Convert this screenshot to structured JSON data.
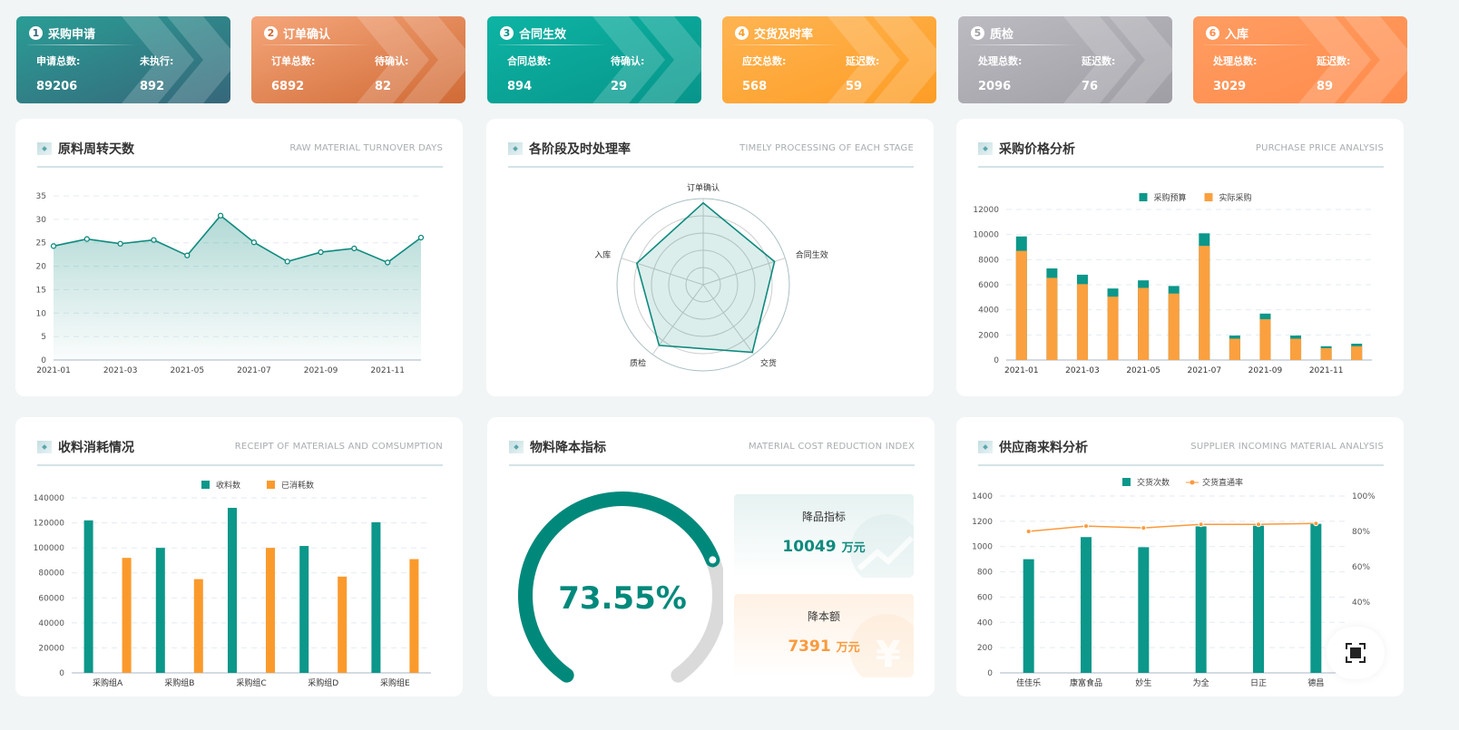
{
  "kpis": [
    {
      "num": "1",
      "title": "采购申请",
      "label1": "申请总数:",
      "value1": "89206",
      "label2": "未执行:",
      "value2": "892",
      "colors": [
        "#2a9d95",
        "#36677a"
      ]
    },
    {
      "num": "2",
      "title": "订单确认",
      "label1": "订单总数:",
      "value1": "6892",
      "label2": "待确认:",
      "value2": "82",
      "colors": [
        "#f5a67a",
        "#d06a35"
      ]
    },
    {
      "num": "3",
      "title": "合同生效",
      "label1": "合同总数:",
      "value1": "894",
      "label2": "待确认:",
      "value2": "29",
      "colors": [
        "#0db4a4",
        "#07958a"
      ]
    },
    {
      "num": "4",
      "title": "交货及时率",
      "label1": "应交总数:",
      "value1": "568",
      "label2": "延迟数:",
      "value2": "59",
      "colors": [
        "#ffb452",
        "#fd9d25"
      ]
    },
    {
      "num": "5",
      "title": "质检",
      "label1": "处理总数:",
      "value1": "2096",
      "label2": "延迟数:",
      "value2": "76",
      "colors": [
        "#bcbbc1",
        "#9f9ea5"
      ]
    },
    {
      "num": "6",
      "title": "入库",
      "label1": "处理总数:",
      "value1": "3029",
      "label2": "延迟数:",
      "value2": "89",
      "colors": [
        "#ff9d62",
        "#ff8b4b"
      ]
    }
  ],
  "panels": {
    "turnover": {
      "title": "原料周转天数",
      "en": "RAW MATERIAL TURNOVER DAYS"
    },
    "timely": {
      "title": "各阶段及时处理率",
      "en": "TIMELY PROCESSING OF EACH STAGE"
    },
    "price": {
      "title": "采购价格分析",
      "en": "PURCHASE PRICE ANALYSIS"
    },
    "receipt": {
      "title": "收料消耗情况",
      "en": "RECEIPT OF MATERIALS AND COMSUMPTION"
    },
    "cost": {
      "title": "物料降本指标",
      "en": "MATERIAL COST REDUCTION INDEX"
    },
    "supplier": {
      "title": "供应商来料分析",
      "en": "SUPPLIER INCOMING MATERIAL ANALYSIS"
    }
  },
  "cost": {
    "gauge_percent": 73.55,
    "gauge_label": "73.55%",
    "box1": {
      "label": "降品指标",
      "value": "10049",
      "unit": "万元"
    },
    "box2": {
      "label": "降本额",
      "value": "7391",
      "unit": "万元"
    }
  },
  "chart_data": [
    {
      "id": "turnover",
      "type": "area",
      "x": [
        "2021-01",
        "2021-02",
        "2021-03",
        "2021-04",
        "2021-05",
        "2021-06",
        "2021-07",
        "2021-08",
        "2021-09",
        "2021-10",
        "2021-11",
        "2021-12"
      ],
      "xticks": [
        "2021-01",
        "2021-03",
        "2021-05",
        "2021-07",
        "2021-09",
        "2021-11"
      ],
      "values": [
        24.3,
        25.8,
        24.8,
        25.6,
        22.3,
        30.8,
        25.1,
        21,
        23,
        23.8,
        20.8,
        26.1
      ],
      "ylim": [
        0,
        35
      ],
      "yticks": [
        0,
        5,
        10,
        15,
        20,
        25,
        30,
        35
      ],
      "color": "#0f8a7e",
      "grid": true
    },
    {
      "id": "timely",
      "type": "radar",
      "indicators": [
        "订单确认",
        "合同生效",
        "交货",
        "质检",
        "入库"
      ],
      "values": [
        95,
        87,
        97,
        87,
        81
      ],
      "max": 100,
      "color": "#0f8a7e"
    },
    {
      "id": "price",
      "type": "bar",
      "x": [
        "2021-01",
        "2021-02",
        "2021-03",
        "2021-04",
        "2021-05",
        "2021-06",
        "2021-07",
        "2021-08",
        "2021-09",
        "2021-10",
        "2021-11",
        "2021-12"
      ],
      "xticks": [
        "2021-01",
        "2021-03",
        "2021-05",
        "2021-07",
        "2021-09",
        "2021-11"
      ],
      "series": [
        {
          "name": "采购预算",
          "values": [
            9850,
            7300,
            6800,
            5700,
            6350,
            5900,
            10100,
            1950,
            3700,
            1950,
            1100,
            1300
          ],
          "color": "#0b978a"
        },
        {
          "name": "实际采购",
          "values": [
            8700,
            6550,
            6050,
            5050,
            5750,
            5300,
            9100,
            1700,
            3250,
            1700,
            950,
            1100
          ],
          "color": "#fba03f"
        }
      ],
      "ylim": [
        0,
        12000
      ],
      "yticks": [
        0,
        2000,
        4000,
        6000,
        8000,
        10000,
        12000
      ],
      "legend": "top",
      "grid": true
    },
    {
      "id": "receipt",
      "type": "bar",
      "categories": [
        "采购组A",
        "采购组B",
        "采购组C",
        "采购组D",
        "采购组E"
      ],
      "series": [
        {
          "name": "收料数",
          "values": [
            122000,
            100000,
            132000,
            101500,
            120500
          ],
          "color": "#0b978a"
        },
        {
          "name": "已消耗数",
          "values": [
            92000,
            75000,
            100000,
            77000,
            91000
          ],
          "color": "#fb9a2c"
        }
      ],
      "ylim": [
        0,
        140000
      ],
      "yticks": [
        0,
        20000,
        40000,
        60000,
        80000,
        100000,
        120000,
        140000
      ],
      "legend": "top",
      "grid": true
    },
    {
      "id": "supplier",
      "type": "bar-line",
      "categories": [
        "佳佳乐",
        "康富食品",
        "妙生",
        "为全",
        "日正",
        "德昌"
      ],
      "series": [
        {
          "name": "交货次数",
          "values": [
            900,
            1075,
            995,
            1160,
            1165,
            1180
          ],
          "color": "#0b978a",
          "axis": "left"
        },
        {
          "name": "交货直通率",
          "values": [
            80,
            83,
            82,
            84,
            84,
            84.5
          ],
          "color": "#fb9a3c",
          "axis": "right"
        }
      ],
      "ylim": [
        0,
        1400
      ],
      "yticks": [
        0,
        200,
        400,
        600,
        800,
        1000,
        1200,
        1400
      ],
      "y2lim": [
        0,
        100
      ],
      "y2ticks": [
        "0%",
        "20%",
        "40%",
        "60%",
        "80%",
        "100%"
      ],
      "legend": "top",
      "grid": true
    }
  ],
  "fullscreen_icon": "fullscreen-icon"
}
